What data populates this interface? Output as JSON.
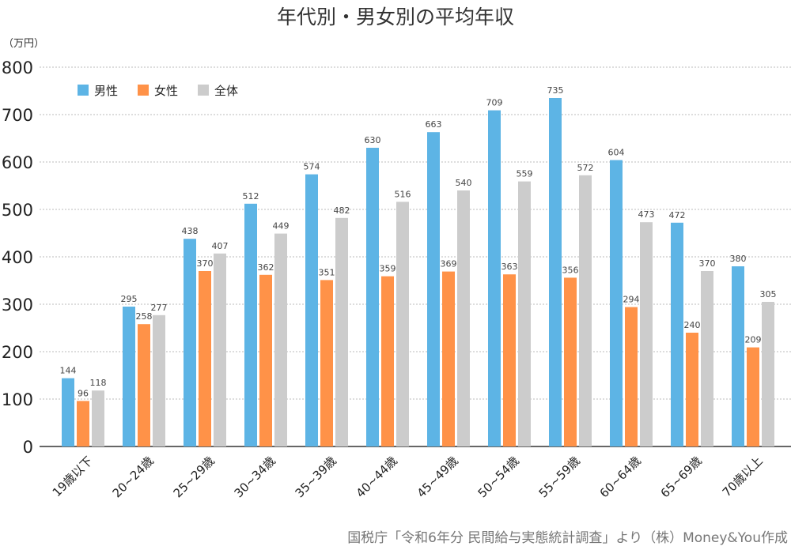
{
  "chart_data": {
    "type": "bar",
    "title": "年代別・男女別の平均年収",
    "ylabel": "（万円）",
    "ylim": [
      0,
      800
    ],
    "yticks": [
      0,
      100,
      200,
      300,
      400,
      500,
      600,
      700,
      800
    ],
    "grid": true,
    "legend_position": "top-left",
    "categories": [
      "19歳以下",
      "20~24歳",
      "25~29歳",
      "30~34歳",
      "35~39歳",
      "40~44歳",
      "45~49歳",
      "50~54歳",
      "55~59歳",
      "60~64歳",
      "65~69歳",
      "70歳以上"
    ],
    "series": [
      {
        "name": "男性",
        "color": "#5DB4E5",
        "values": [
          144,
          295,
          438,
          512,
          574,
          630,
          663,
          709,
          735,
          604,
          472,
          380
        ]
      },
      {
        "name": "女性",
        "color": "#FF9248",
        "values": [
          96,
          258,
          370,
          362,
          351,
          359,
          369,
          363,
          356,
          294,
          240,
          209
        ]
      },
      {
        "name": "全体",
        "color": "#CCCCCC",
        "values": [
          118,
          277,
          407,
          449,
          482,
          516,
          540,
          559,
          572,
          473,
          370,
          305
        ]
      }
    ],
    "source": "国税庁「令和6年分 民間給与実態統計調査」より（株）Money&You作成"
  }
}
